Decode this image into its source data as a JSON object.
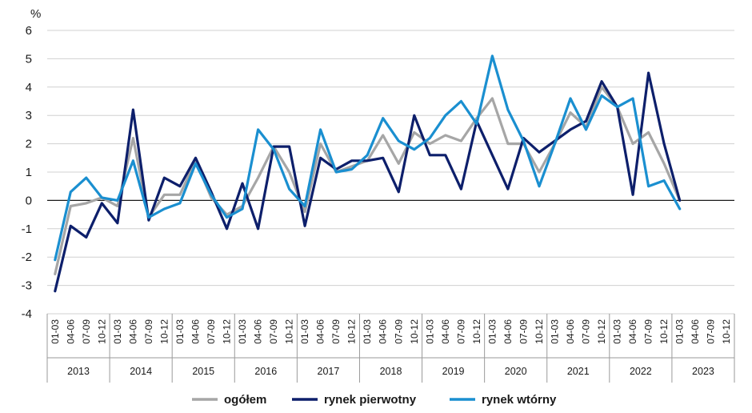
{
  "chart_data": {
    "type": "line",
    "ylabel": "%",
    "ylim": [
      -4,
      6
    ],
    "yticks": [
      -4,
      -3,
      -2,
      -1,
      0,
      1,
      2,
      3,
      4,
      5,
      6
    ],
    "grid": true,
    "legend_position": "bottom",
    "quarters": [
      "01-03",
      "04-06",
      "07-09",
      "10-12"
    ],
    "years": [
      "2013",
      "2014",
      "2015",
      "2016",
      "2017",
      "2018",
      "2019",
      "2020",
      "2021",
      "2022",
      "2023"
    ],
    "series": [
      {
        "name": "ogółem",
        "color": "#a6a6a6",
        "values": [
          -2.6,
          -0.2,
          -0.1,
          0.1,
          -0.2,
          2.2,
          -0.6,
          0.2,
          0.2,
          1.4,
          0.1,
          -0.5,
          -0.2,
          0.8,
          1.9,
          1.0,
          -0.4,
          2.0,
          1.0,
          1.2,
          1.4,
          2.3,
          1.3,
          2.4,
          2.0,
          2.3,
          2.1,
          2.9,
          3.6,
          2.0,
          2.0,
          1.0,
          2.0,
          3.1,
          2.6,
          4.0,
          3.3,
          2.0,
          2.4,
          1.3,
          0.0
        ]
      },
      {
        "name": "rynek pierwotny",
        "color": "#0d1f6b",
        "values": [
          -3.2,
          -0.9,
          -1.3,
          -0.1,
          -0.8,
          3.2,
          -0.7,
          0.8,
          0.5,
          1.5,
          0.3,
          -1.0,
          0.6,
          -1.0,
          1.9,
          1.9,
          -0.9,
          1.5,
          1.1,
          1.4,
          1.4,
          1.5,
          0.3,
          3.0,
          1.6,
          1.6,
          0.4,
          2.8,
          1.6,
          0.4,
          2.2,
          1.7,
          2.1,
          2.5,
          2.8,
          4.2,
          3.3,
          0.2,
          4.5,
          2.0,
          0.0
        ]
      },
      {
        "name": "rynek wtórny",
        "color": "#1a8fd0",
        "values": [
          -2.1,
          0.3,
          0.8,
          0.1,
          0.0,
          1.4,
          -0.6,
          -0.3,
          -0.1,
          1.3,
          0.2,
          -0.6,
          -0.3,
          2.5,
          1.8,
          0.4,
          -0.2,
          2.5,
          1.0,
          1.1,
          1.6,
          2.9,
          2.1,
          1.8,
          2.2,
          3.0,
          3.5,
          2.7,
          5.1,
          3.2,
          2.1,
          0.5,
          2.0,
          3.6,
          2.5,
          3.7,
          3.3,
          3.6,
          0.5,
          0.7,
          -0.3
        ]
      }
    ]
  }
}
